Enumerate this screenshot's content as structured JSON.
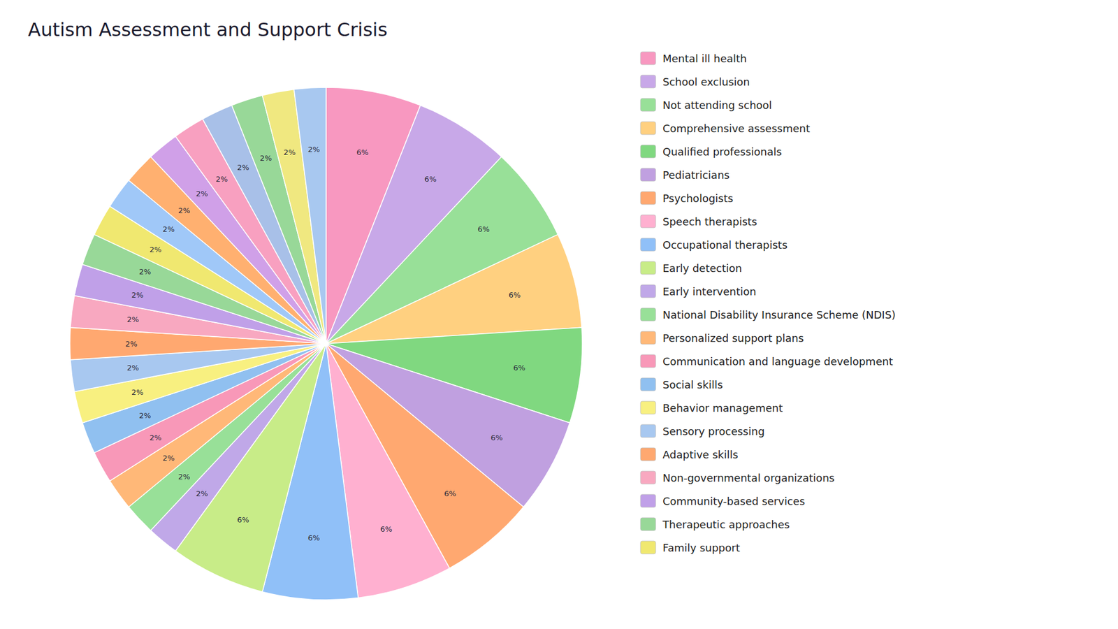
{
  "chart_data": {
    "type": "pie",
    "title": "Autism Assessment and Support Crisis",
    "categories": [
      "Mental ill health",
      "School exclusion",
      "Not attending school",
      "Comprehensive assessment",
      "Qualified professionals",
      "Pediatricians",
      "Psychologists",
      "Speech therapists",
      "Occupational therapists",
      "Early detection",
      "Early intervention",
      "National Disability Insurance Scheme (NDIS)",
      "Personalized support plans",
      "Communication and language development",
      "Social skills",
      "Behavior management",
      "Sensory processing",
      "Adaptive skills",
      "Non-governmental organizations",
      "Community-based services",
      "Therapeutic approaches",
      "Family support",
      null,
      null,
      null,
      null,
      null,
      null,
      null,
      null
    ],
    "values": [
      6,
      6,
      6,
      6,
      6,
      6,
      6,
      6,
      6,
      6,
      2,
      2,
      2,
      2,
      2,
      2,
      2,
      2,
      2,
      2,
      2,
      2,
      2,
      2,
      2,
      2,
      2,
      2,
      2,
      2
    ],
    "value_labels": [
      "6%",
      "6%",
      "6%",
      "6%",
      "6%",
      "6%",
      "6%",
      "6%",
      "6%",
      "6%",
      "2%",
      "2%",
      "2%",
      "2%",
      "2%",
      "2%",
      "2%",
      "2%",
      "2%",
      "2%",
      "2%",
      "2%",
      "2%",
      "2%",
      "2%",
      "2%",
      "2%",
      "2%",
      "2%",
      "2%"
    ],
    "colors": [
      "#F898C0",
      "#C8A8E8",
      "#98E098",
      "#FFD080",
      "#80D880",
      "#C0A0E0",
      "#FFA870",
      "#FFB0D0",
      "#90C0F8",
      "#C8EC88",
      "#C0A8E8",
      "#98E098",
      "#FFB878",
      "#F898B8",
      "#90C0F0",
      "#F8F080",
      "#A8C8F0",
      "#FFA870",
      "#F8A8C0",
      "#C0A0E8",
      "#98D898",
      "#F0E870",
      "#A0C8F8",
      "#FFB070",
      "#D0A0E8",
      "#F8A0C0",
      "#A8C0E8",
      "#98D898",
      "#F0E880",
      "#A8C8F0"
    ],
    "data_labels": true,
    "legend": "right"
  }
}
